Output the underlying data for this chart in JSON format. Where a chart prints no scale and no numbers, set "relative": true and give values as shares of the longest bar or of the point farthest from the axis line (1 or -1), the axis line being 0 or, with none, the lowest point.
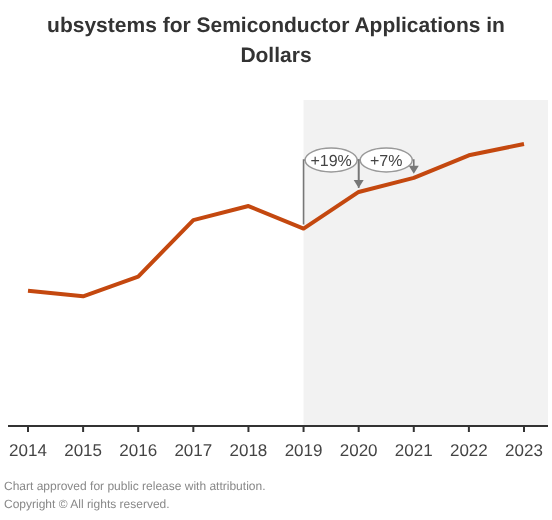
{
  "chart_data": {
    "type": "line",
    "relative": true,
    "title": "ubsystems for Semiconductor Applications in",
    "subtitle": "Dollars",
    "categories": [
      "2014",
      "2015",
      "2016",
      "2017",
      "2018",
      "2019",
      "2020",
      "2021",
      "2022",
      "2023"
    ],
    "series": [
      {
        "color": "#c4480f",
        "values": [
          0.48,
          0.46,
          0.53,
          0.73,
          0.78,
          0.7,
          0.83,
          0.88,
          0.96,
          1
        ]
      }
    ],
    "bands": [
      {
        "axis": "x",
        "from": "2019",
        "to": "2023",
        "color": "#f2f2f2"
      }
    ],
    "annotations": [
      "+19%",
      "+7%",
      "Chart approved for public release with attribution.",
      "Copyright © All rights reserved."
    ],
    "marker": "none",
    "line_style": "solid",
    "grid": false
  }
}
